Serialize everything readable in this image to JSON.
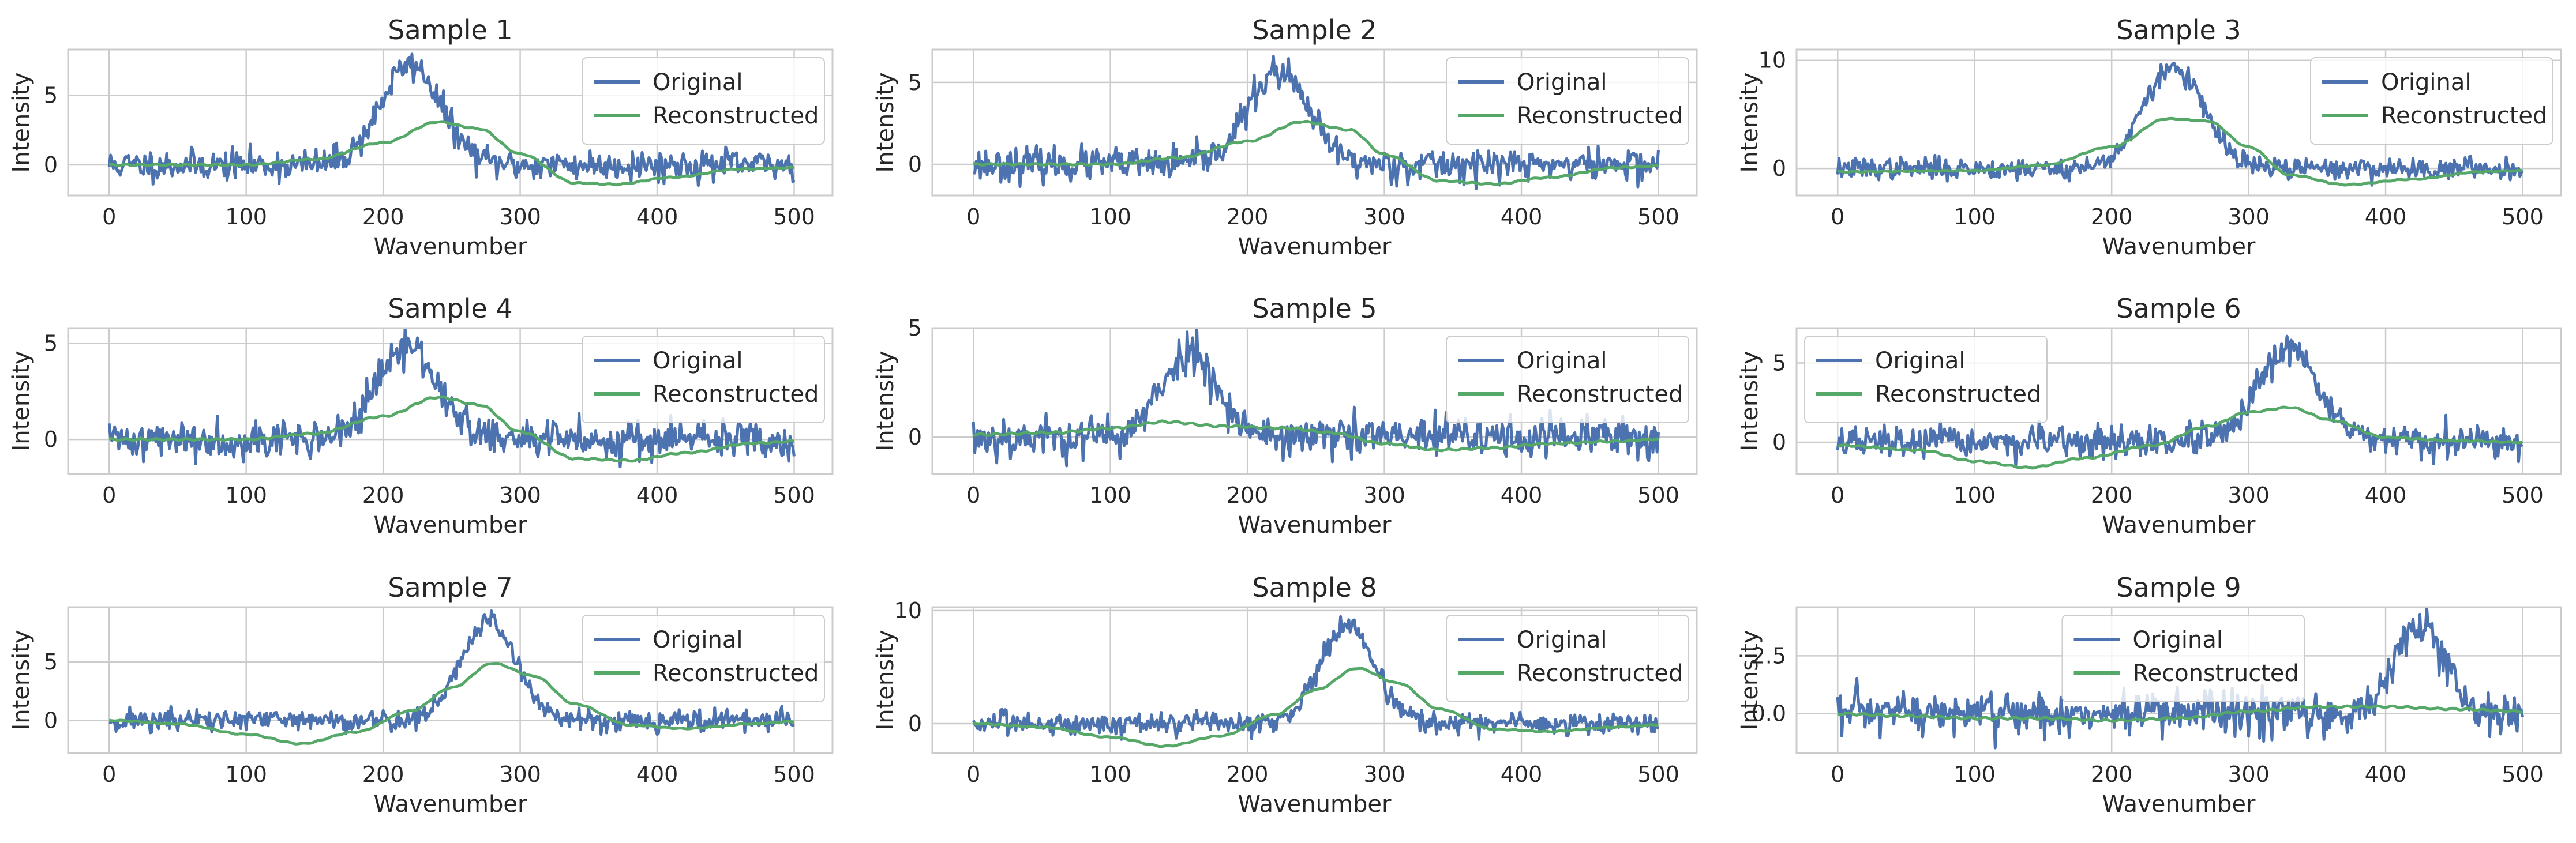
{
  "colors": {
    "original": "#4c72b0",
    "reconstructed": "#55a868",
    "grid": "#cccccc",
    "frame": "#cccccc",
    "background": "#ffffff"
  },
  "chart_data": [
    {
      "type": "line",
      "title": "Sample 1",
      "xlabel": "Wavenumber",
      "ylabel": "Intensity",
      "xlim": [
        -30,
        528
      ],
      "ylim": [
        -2.2,
        8.3
      ],
      "xticks": [
        0,
        100,
        200,
        300,
        400,
        500
      ],
      "yticks": [
        0,
        5
      ],
      "ytick_labels": [
        "0",
        "5"
      ],
      "grid": true,
      "legend": "upper right",
      "series": [
        {
          "name": "Original",
          "kind": "peak",
          "center": 220,
          "width": 22,
          "amp": 7.2,
          "noise": 0.55,
          "seed": 11
        },
        {
          "name": "Reconstructed",
          "kind": "smooth",
          "points": [
            [
              0,
              0
            ],
            [
              100,
              0
            ],
            [
              150,
              0.4
            ],
            [
              200,
              1.6
            ],
            [
              240,
              3.1
            ],
            [
              270,
              2.6
            ],
            [
              300,
              0.8
            ],
            [
              340,
              -1.3
            ],
            [
              370,
              -1.4
            ],
            [
              410,
              -0.9
            ],
            [
              460,
              -0.3
            ],
            [
              500,
              -0.2
            ]
          ]
        }
      ]
    },
    {
      "type": "line",
      "title": "Sample 2",
      "xlabel": "Wavenumber",
      "ylabel": "Intensity",
      "xlim": [
        -30,
        528
      ],
      "ylim": [
        -1.9,
        7.0
      ],
      "xticks": [
        0,
        100,
        200,
        300,
        400,
        500
      ],
      "yticks": [
        0,
        5
      ],
      "ytick_labels": [
        "0",
        "5"
      ],
      "grid": true,
      "legend": "upper right",
      "series": [
        {
          "name": "Original",
          "kind": "peak",
          "center": 222,
          "width": 22,
          "amp": 5.6,
          "noise": 0.5,
          "seed": 23
        },
        {
          "name": "Reconstructed",
          "kind": "smooth",
          "points": [
            [
              0,
              0
            ],
            [
              100,
              0
            ],
            [
              150,
              0.4
            ],
            [
              200,
              1.4
            ],
            [
              240,
              2.6
            ],
            [
              275,
              2.1
            ],
            [
              300,
              0.6
            ],
            [
              340,
              -1.0
            ],
            [
              380,
              -1.2
            ],
            [
              420,
              -0.8
            ],
            [
              470,
              -0.2
            ],
            [
              500,
              -0.1
            ]
          ]
        }
      ]
    },
    {
      "type": "line",
      "title": "Sample 3",
      "xlabel": "Wavenumber",
      "ylabel": "Intensity",
      "xlim": [
        -30,
        528
      ],
      "ylim": [
        -2.5,
        11.0
      ],
      "xticks": [
        0,
        100,
        200,
        300,
        400,
        500
      ],
      "yticks": [
        0,
        10
      ],
      "ytick_labels": [
        "0",
        "10"
      ],
      "grid": true,
      "legend": "upper right",
      "series": [
        {
          "name": "Original",
          "kind": "peak",
          "center": 245,
          "width": 22,
          "amp": 9.3,
          "noise": 0.5,
          "seed": 37
        },
        {
          "name": "Reconstructed",
          "kind": "smooth",
          "points": [
            [
              0,
              -0.3
            ],
            [
              100,
              -0.2
            ],
            [
              150,
              0.3
            ],
            [
              200,
              2.0
            ],
            [
              240,
              4.6
            ],
            [
              270,
              4.4
            ],
            [
              300,
              2.0
            ],
            [
              330,
              -0.6
            ],
            [
              370,
              -1.5
            ],
            [
              420,
              -1.0
            ],
            [
              470,
              -0.3
            ],
            [
              500,
              -0.2
            ]
          ]
        }
      ]
    },
    {
      "type": "line",
      "title": "Sample 4",
      "xlabel": "Wavenumber",
      "ylabel": "Intensity",
      "xlim": [
        -30,
        528
      ],
      "ylim": [
        -1.8,
        5.8
      ],
      "xticks": [
        0,
        100,
        200,
        300,
        400,
        500
      ],
      "yticks": [
        0,
        5
      ],
      "ytick_labels": [
        "0",
        "5"
      ],
      "grid": true,
      "legend": "upper right",
      "series": [
        {
          "name": "Original",
          "kind": "peak",
          "center": 218,
          "width": 22,
          "amp": 4.8,
          "noise": 0.5,
          "seed": 41
        },
        {
          "name": "Reconstructed",
          "kind": "smooth",
          "points": [
            [
              0,
              0
            ],
            [
              100,
              0
            ],
            [
              150,
              0.3
            ],
            [
              200,
              1.2
            ],
            [
              240,
              2.2
            ],
            [
              270,
              1.8
            ],
            [
              300,
              0.4
            ],
            [
              340,
              -1.0
            ],
            [
              380,
              -1.1
            ],
            [
              420,
              -0.7
            ],
            [
              470,
              -0.2
            ],
            [
              500,
              -0.1
            ]
          ]
        }
      ]
    },
    {
      "type": "line",
      "title": "Sample 5",
      "xlabel": "Wavenumber",
      "ylabel": "Intensity",
      "xlim": [
        -30,
        528
      ],
      "ylim": [
        -1.7,
        5.0
      ],
      "xticks": [
        0,
        100,
        200,
        300,
        400,
        500
      ],
      "yticks": [
        0,
        5
      ],
      "ytick_labels": [
        "0",
        "5"
      ],
      "grid": true,
      "legend": "upper right",
      "series": [
        {
          "name": "Original",
          "kind": "peak",
          "center": 158,
          "width": 20,
          "amp": 3.9,
          "noise": 0.5,
          "seed": 53
        },
        {
          "name": "Reconstructed",
          "kind": "smooth",
          "points": [
            [
              0,
              0.1
            ],
            [
              60,
              0.2
            ],
            [
              100,
              0.4
            ],
            [
              140,
              0.7
            ],
            [
              180,
              0.5
            ],
            [
              230,
              0.4
            ],
            [
              260,
              0.2
            ],
            [
              300,
              -0.3
            ],
            [
              340,
              -0.6
            ],
            [
              380,
              -0.5
            ],
            [
              420,
              -0.3
            ],
            [
              470,
              -0.2
            ],
            [
              500,
              -0.1
            ]
          ]
        }
      ]
    },
    {
      "type": "line",
      "title": "Sample 6",
      "xlabel": "Wavenumber",
      "ylabel": "Intensity",
      "xlim": [
        -30,
        528
      ],
      "ylim": [
        -2.0,
        7.2
      ],
      "xticks": [
        0,
        100,
        200,
        300,
        400,
        500
      ],
      "yticks": [
        0,
        5
      ],
      "ytick_labels": [
        "0",
        "5"
      ],
      "grid": true,
      "legend": "upper left",
      "series": [
        {
          "name": "Original",
          "kind": "peak",
          "center": 330,
          "width": 22,
          "amp": 5.8,
          "noise": 0.5,
          "seed": 67
        },
        {
          "name": "Reconstructed",
          "kind": "smooth",
          "points": [
            [
              0,
              -0.2
            ],
            [
              60,
              -0.5
            ],
            [
              100,
              -1.2
            ],
            [
              140,
              -1.6
            ],
            [
              180,
              -1.0
            ],
            [
              230,
              -0.2
            ],
            [
              270,
              1.0
            ],
            [
              300,
              1.9
            ],
            [
              330,
              2.2
            ],
            [
              360,
              1.4
            ],
            [
              400,
              0.3
            ],
            [
              450,
              0.1
            ],
            [
              500,
              0.0
            ]
          ]
        }
      ]
    },
    {
      "type": "line",
      "title": "Sample 7",
      "xlabel": "Wavenumber",
      "ylabel": "Intensity",
      "xlim": [
        -30,
        528
      ],
      "ylim": [
        -2.8,
        9.7
      ],
      "xticks": [
        0,
        100,
        200,
        300,
        400,
        500
      ],
      "yticks": [
        0,
        5
      ],
      "ytick_labels": [
        "0",
        "5"
      ],
      "grid": true,
      "legend": "upper right",
      "series": [
        {
          "name": "Original",
          "kind": "peak",
          "center": 277,
          "width": 20,
          "amp": 8.5,
          "noise": 0.5,
          "seed": 71
        },
        {
          "name": "Reconstructed",
          "kind": "smooth",
          "points": [
            [
              0,
              0
            ],
            [
              50,
              -0.3
            ],
            [
              100,
              -1.2
            ],
            [
              140,
              -2.0
            ],
            [
              180,
              -1.0
            ],
            [
              220,
              0.8
            ],
            [
              250,
              2.8
            ],
            [
              280,
              4.9
            ],
            [
              310,
              3.8
            ],
            [
              340,
              1.4
            ],
            [
              380,
              -0.4
            ],
            [
              420,
              -0.7
            ],
            [
              470,
              -0.3
            ],
            [
              500,
              -0.1
            ]
          ]
        }
      ]
    },
    {
      "type": "line",
      "title": "Sample 8",
      "xlabel": "Wavenumber",
      "ylabel": "Intensity",
      "xlim": [
        -30,
        528
      ],
      "ylim": [
        -2.6,
        10.3
      ],
      "xticks": [
        0,
        100,
        200,
        300,
        400,
        500
      ],
      "yticks": [
        0,
        10
      ],
      "ytick_labels": [
        "0",
        "10"
      ],
      "grid": true,
      "legend": "upper right",
      "series": [
        {
          "name": "Original",
          "kind": "peak",
          "center": 273,
          "width": 20,
          "amp": 8.7,
          "noise": 0.5,
          "seed": 83
        },
        {
          "name": "Reconstructed",
          "kind": "smooth",
          "points": [
            [
              0,
              0
            ],
            [
              50,
              -0.3
            ],
            [
              100,
              -1.2
            ],
            [
              140,
              -2.0
            ],
            [
              180,
              -1.1
            ],
            [
              220,
              0.8
            ],
            [
              250,
              3.0
            ],
            [
              280,
              4.9
            ],
            [
              310,
              3.6
            ],
            [
              340,
              1.3
            ],
            [
              380,
              -0.5
            ],
            [
              420,
              -0.7
            ],
            [
              470,
              -0.3
            ],
            [
              500,
              -0.1
            ]
          ]
        }
      ]
    },
    {
      "type": "line",
      "title": "Sample 9",
      "xlabel": "Wavenumber",
      "ylabel": "Intensity",
      "xlim": [
        -30,
        528
      ],
      "ylim": [
        -1.7,
        4.6
      ],
      "xticks": [
        0,
        100,
        200,
        300,
        400,
        500
      ],
      "yticks": [
        0,
        2.5
      ],
      "ytick_labels": [
        "0.0",
        "2.5"
      ],
      "grid": true,
      "legend": "upper center",
      "series": [
        {
          "name": "Original",
          "kind": "peak",
          "center": 425,
          "width": 18,
          "amp": 3.8,
          "noise": 0.5,
          "seed": 97
        },
        {
          "name": "Reconstructed",
          "kind": "smooth",
          "points": [
            [
              0,
              0
            ],
            [
              50,
              -0.1
            ],
            [
              100,
              -0.2
            ],
            [
              150,
              -0.2
            ],
            [
              200,
              -0.3
            ],
            [
              250,
              -0.2
            ],
            [
              300,
              0.1
            ],
            [
              350,
              0.3
            ],
            [
              400,
              0.3
            ],
            [
              450,
              0.2
            ],
            [
              500,
              0.1
            ]
          ]
        }
      ]
    }
  ]
}
